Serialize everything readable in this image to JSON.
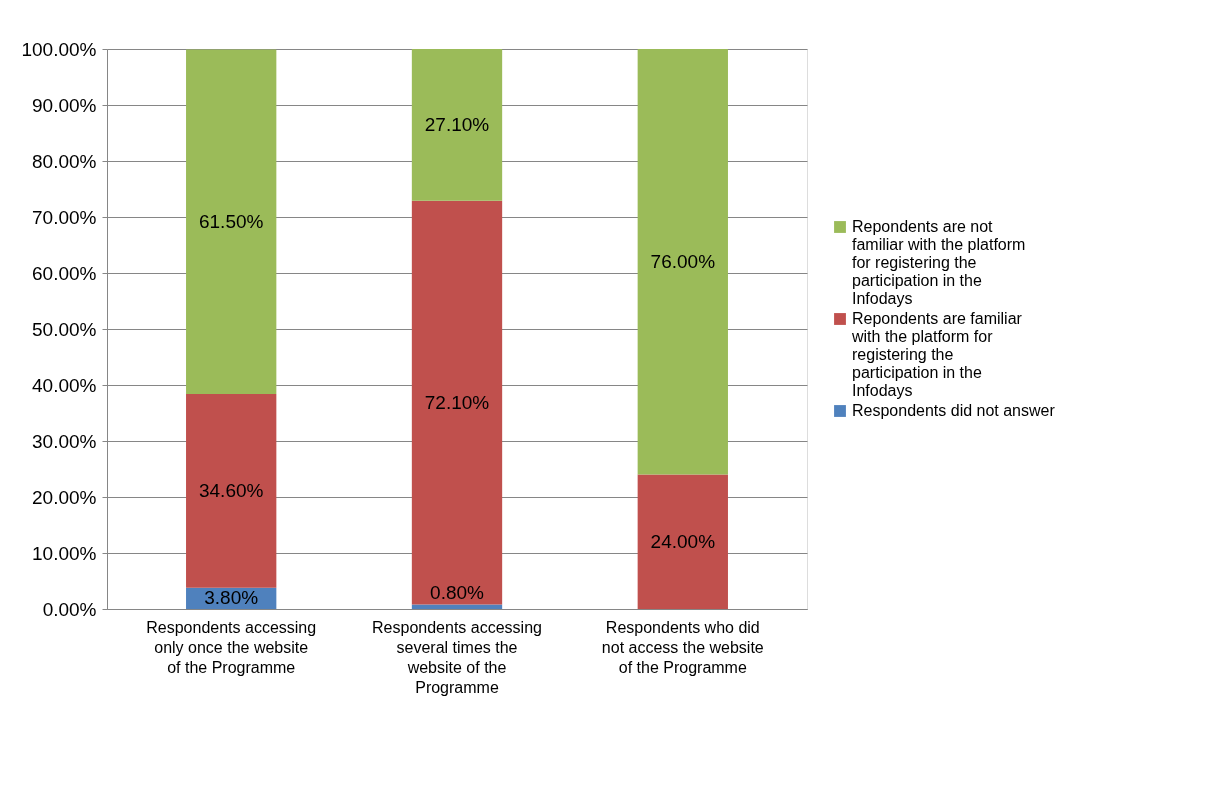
{
  "chart_data": {
    "type": "bar",
    "stacked": true,
    "categories": [
      "Respondents accessing only once the website of the Programme",
      "Respondents accessing several times the website of the Programme",
      "Respondents who did not access the website of the Programme"
    ],
    "series": [
      {
        "name": "Respondents did not answer",
        "color": "#4f81bd",
        "values": [
          3.8,
          0.8,
          null
        ],
        "value_labels": [
          "3.80%",
          "0.80%",
          null
        ]
      },
      {
        "name": "Repondents are familiar with the platform for registering the participation in the Infodays",
        "color": "#c0504d",
        "values": [
          34.6,
          72.1,
          24.0
        ],
        "value_labels": [
          "34.60%",
          "72.10%",
          "24.00%"
        ]
      },
      {
        "name": "Repondents are not familiar with the platform for registering the participation in the Infodays",
        "color": "#9bbb59",
        "values": [
          61.5,
          27.1,
          76.0
        ],
        "value_labels": [
          "61.50%",
          "27.10%",
          "76.00%"
        ]
      }
    ],
    "ylim": [
      0,
      100
    ],
    "yticks": [
      {
        "value": 0,
        "label": "0.00%"
      },
      {
        "value": 10,
        "label": "10.00%"
      },
      {
        "value": 20,
        "label": "20.00%"
      },
      {
        "value": 30,
        "label": "30.00%"
      },
      {
        "value": 40,
        "label": "40.00%"
      },
      {
        "value": 50,
        "label": "50.00%"
      },
      {
        "value": 60,
        "label": "60.00%"
      },
      {
        "value": 70,
        "label": "70.00%"
      },
      {
        "value": 80,
        "label": "80.00%"
      },
      {
        "value": 90,
        "label": "90.00%"
      },
      {
        "value": 100,
        "label": "100.00%"
      }
    ],
    "grid": "y",
    "legend": "right"
  }
}
